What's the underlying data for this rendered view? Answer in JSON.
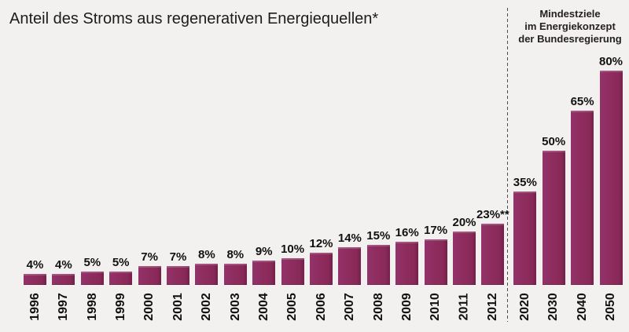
{
  "title": "Anteil des Stroms aus regenerativen Energiequellen*",
  "annotation": {
    "lines": [
      "Mindestziele",
      "im Energiekonzept",
      "der Bundesregierung"
    ]
  },
  "colors": {
    "bar": "#8E2C5E",
    "background": "#F2F1EF",
    "divider": "#4D4D4D",
    "text": "#1C1C1C"
  },
  "chart_data": {
    "type": "bar",
    "title": "Anteil des Stroms aus regenerativen Energiequellen*",
    "annotation": "Mindestziele im Energiekonzept der Bundesregierung",
    "unit": "%",
    "categories": [
      "1996",
      "1997",
      "1998",
      "1999",
      "2000",
      "2001",
      "2002",
      "2003",
      "2004",
      "2005",
      "2006",
      "2007",
      "2008",
      "2009",
      "2010",
      "2011",
      "2012",
      "2020",
      "2030",
      "2040",
      "2050"
    ],
    "values": [
      4,
      4,
      5,
      5,
      7,
      7,
      8,
      8,
      9,
      10,
      12,
      14,
      15,
      16,
      17,
      20,
      23,
      35,
      50,
      65,
      80
    ],
    "bar_labels": [
      "4%",
      "4%",
      "5%",
      "5%",
      "7%",
      "7%",
      "8%",
      "8%",
      "9%",
      "10%",
      "12%",
      "14%",
      "15%",
      "16%",
      "17%",
      "20%",
      "23%**",
      "35%",
      "50%",
      "65%",
      "80%"
    ],
    "target_start_index": 17,
    "xlabel": "",
    "ylabel": "",
    "ylim": [
      0,
      85
    ],
    "grid": false,
    "legend": false
  }
}
